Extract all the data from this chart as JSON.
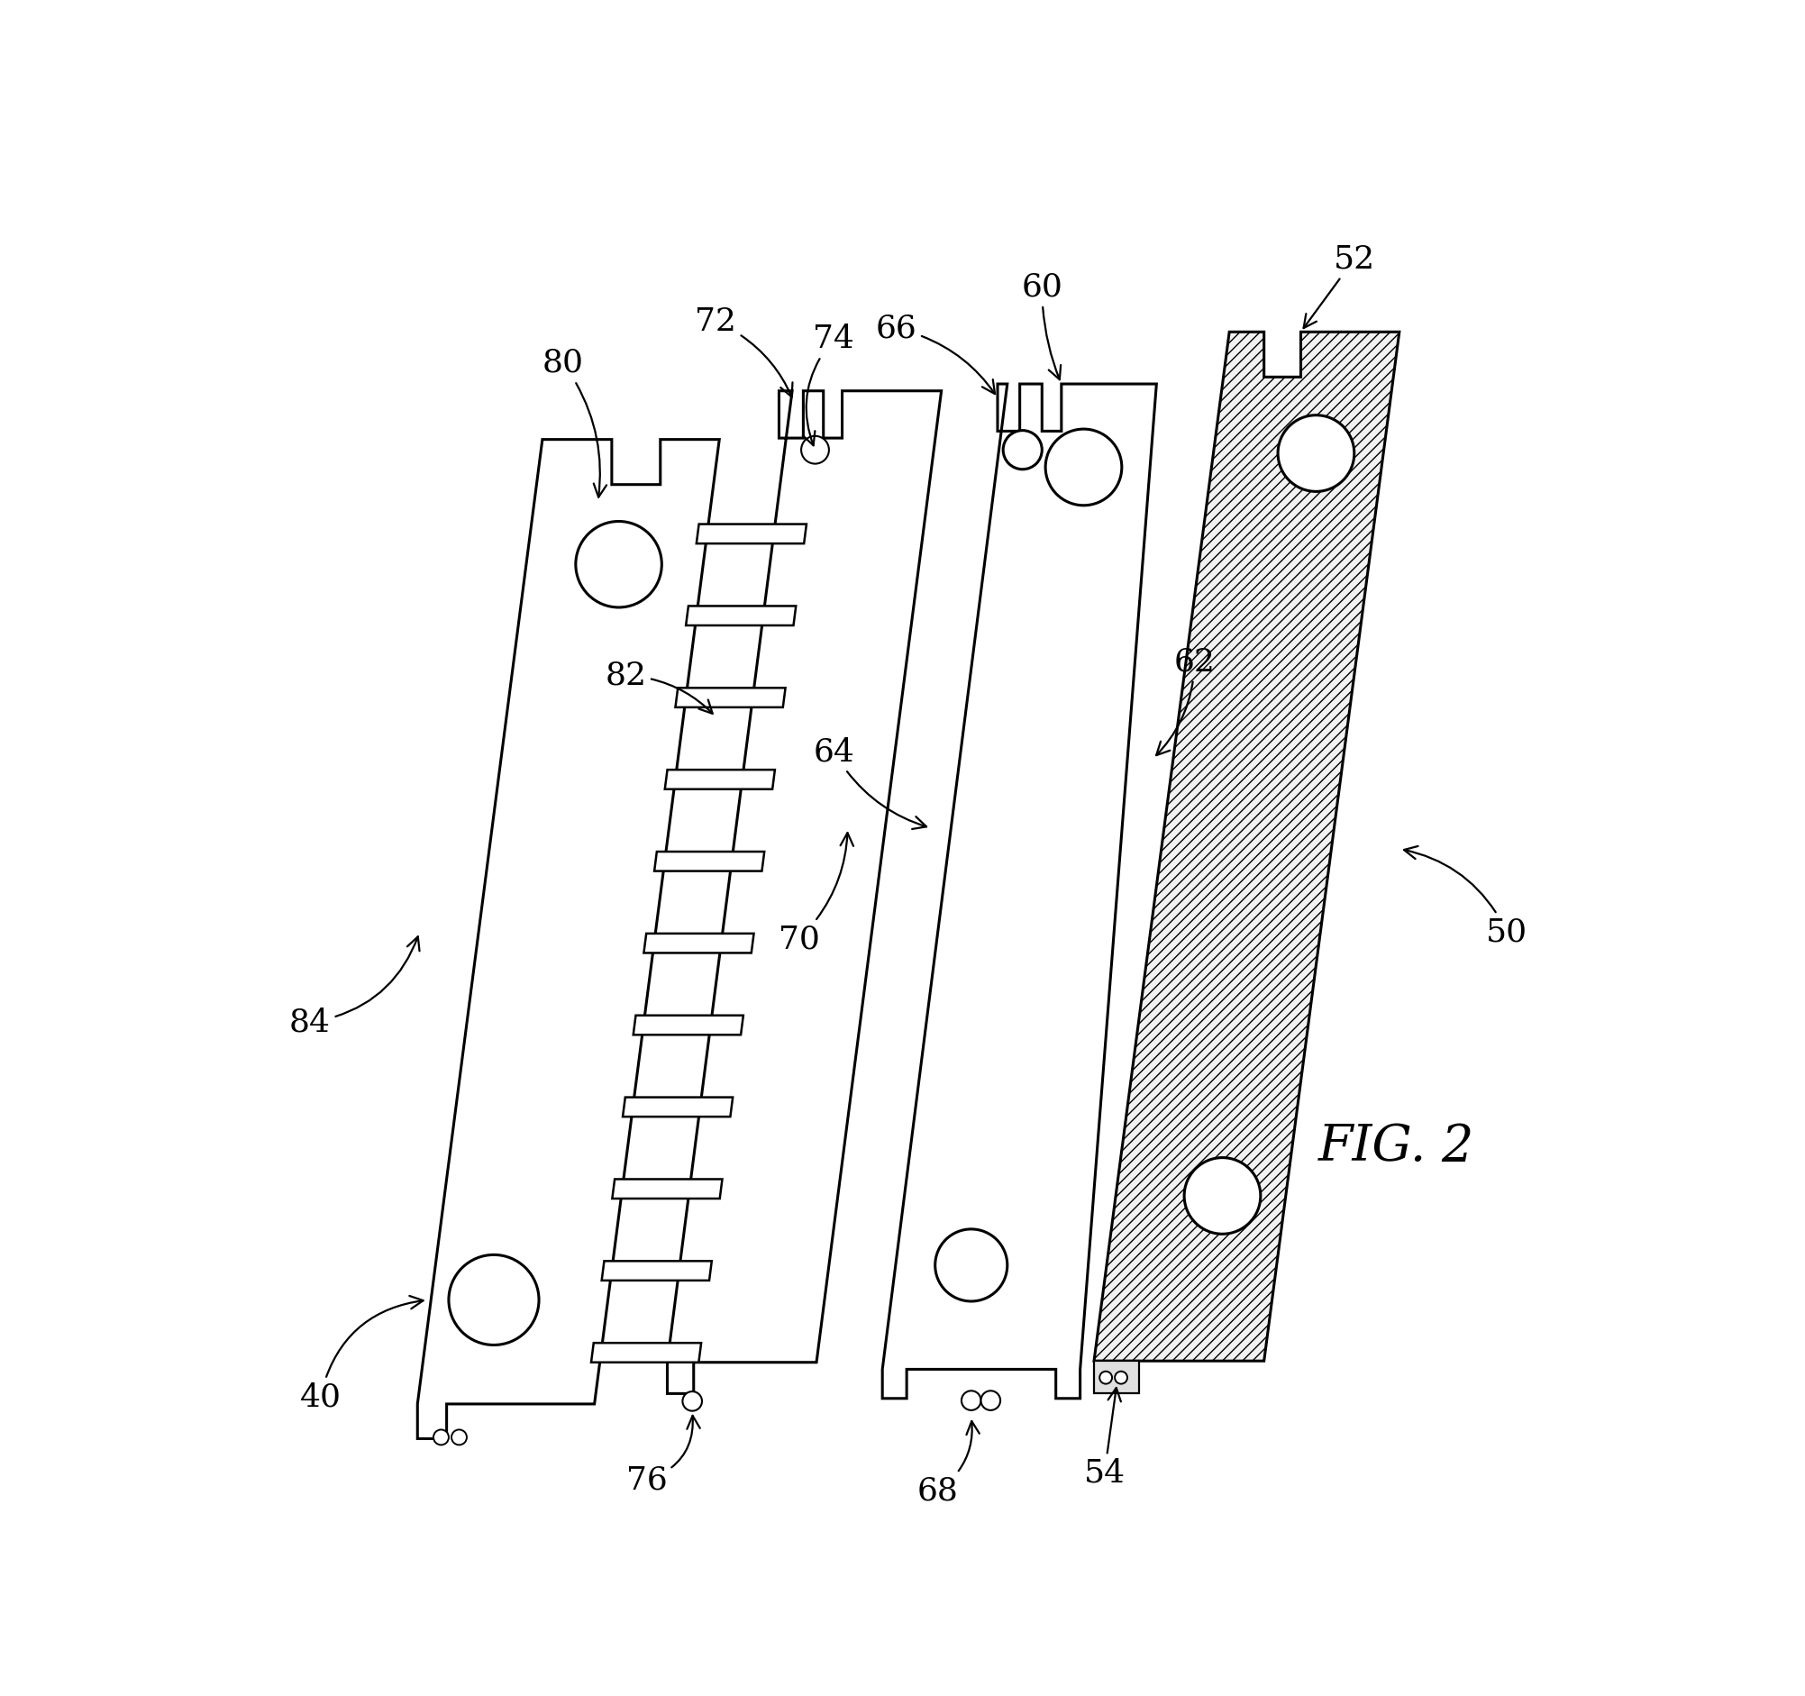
{
  "bg_color": "#ffffff",
  "line_color": "#000000",
  "fig_label": "FIG. 2",
  "fig_label_fontsize": 40,
  "ref_fontsize": 26,
  "lw": 2.2
}
